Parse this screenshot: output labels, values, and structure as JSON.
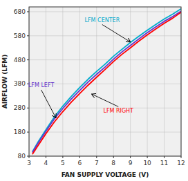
{
  "chart_data": {
    "type": "line",
    "title": "",
    "x_label": "FAN SUPPLY VOLTAGE (V)",
    "y_label": "AIRFLOW (LFM)",
    "xlim": [
      3,
      12
    ],
    "ylim": [
      80,
      700
    ],
    "xticks": [
      3,
      4,
      5,
      6,
      7,
      8,
      9,
      10,
      11,
      12
    ],
    "yticks": [
      80,
      180,
      280,
      380,
      480,
      580,
      680
    ],
    "grid": true,
    "x": [
      3.2,
      3.5,
      4.0,
      4.5,
      5.0,
      5.5,
      6.0,
      6.5,
      7.0,
      7.5,
      8.0,
      8.5,
      9.0,
      9.5,
      10.0,
      10.5,
      11.0,
      11.5,
      12.0
    ],
    "series": [
      {
        "color": "#00aacc",
        "values": [
          98,
          135,
          190,
          243,
          288,
          328,
          365,
          400,
          432,
          462,
          495,
          524,
          552,
          578,
          603,
          627,
          650,
          670,
          692
        ]
      },
      {
        "color": "#6633cc",
        "values": [
          95,
          130,
          183,
          235,
          278,
          317,
          353,
          388,
          420,
          450,
          483,
          513,
          540,
          567,
          593,
          617,
          640,
          660,
          682
        ]
      },
      {
        "color": "#ff0000",
        "values": [
          88,
          120,
          173,
          222,
          265,
          304,
          340,
          375,
          408,
          440,
          473,
          503,
          530,
          558,
          584,
          608,
          632,
          653,
          678
        ]
      }
    ],
    "annotations": [
      {
        "text": "LFM CENTER",
        "x": 9.05,
        "y": 552,
        "color": "#00aacc"
      },
      {
        "text": "LFM LEFT",
        "x": 4.62,
        "y": 235,
        "color": "#6633cc"
      },
      {
        "text": "LFM RIGHT",
        "x": 6.65,
        "y": 340,
        "color": "#ff0000"
      }
    ]
  }
}
